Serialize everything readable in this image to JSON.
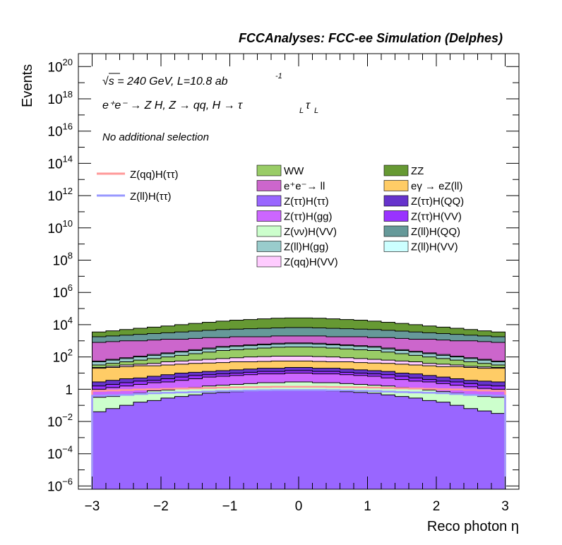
{
  "chart_data": {
    "type": "histogram-stack",
    "title": "FCCAnalyses: FCC-ee Simulation (Delphes)",
    "xlabel": "Reco photon η",
    "ylabel": "Events",
    "xlim": [
      -3.2,
      3.2
    ],
    "ylim_log10": [
      -6.2,
      20.8
    ],
    "log_y": true,
    "annotations": {
      "energy_prefix": "√s",
      "energy_rest": " = 240 GeV, L=10.8 ab",
      "lumi_exp": "-1",
      "process": "e⁺e⁻ → Z H, Z  → qq, H  → τ",
      "process_sub1": "L",
      "process_tau2": "τ",
      "process_sub2": "L",
      "selection": "No additional selection"
    },
    "x_ticks": [
      "−3",
      "−2",
      "−1",
      "0",
      "1",
      "2",
      "3"
    ],
    "x_tick_values": [
      -3,
      -2,
      -1,
      0,
      1,
      2,
      3
    ],
    "y_ticks": [
      {
        "exp": -6,
        "label": "10",
        "sup": "−6"
      },
      {
        "exp": -4,
        "label": "10",
        "sup": "−4"
      },
      {
        "exp": -2,
        "label": "10",
        "sup": "−2"
      },
      {
        "exp": 0,
        "label": "1",
        "sup": ""
      },
      {
        "exp": 2,
        "label": "10",
        "sup": "2"
      },
      {
        "exp": 4,
        "label": "10",
        "sup": "4"
      },
      {
        "exp": 6,
        "label": "10",
        "sup": "6"
      },
      {
        "exp": 8,
        "label": "10",
        "sup": "8"
      },
      {
        "exp": 10,
        "label": "10",
        "sup": "10"
      },
      {
        "exp": 12,
        "label": "10",
        "sup": "12"
      },
      {
        "exp": 14,
        "label": "10",
        "sup": "14"
      },
      {
        "exp": 16,
        "label": "10",
        "sup": "16"
      },
      {
        "exp": 18,
        "label": "10",
        "sup": "18"
      },
      {
        "exp": 20,
        "label": "10",
        "sup": "20"
      }
    ],
    "bins": {
      "start": -3,
      "end": 3,
      "count": 30
    },
    "stack_log10_tops": [
      {
        "name": "Z(ττ)H(ττ)",
        "color": "#9966ff",
        "values": [
          -1.4,
          -1.2,
          -1.0,
          -0.8,
          -0.7,
          -0.55,
          -0.45,
          -0.35,
          -0.25,
          -0.2,
          -0.15,
          -0.1,
          -0.05,
          -0.05,
          -0.05,
          -0.05,
          -0.05,
          -0.1,
          -0.15,
          -0.2,
          -0.25,
          -0.35,
          -0.45,
          -0.55,
          -0.7,
          -0.8,
          -1.0,
          -1.2,
          -1.35,
          -1.5
        ]
      },
      {
        "name": "Z(νν)H(VV)",
        "color": "#ccffcc",
        "values": [
          -0.5,
          -0.45,
          -0.35,
          -0.25,
          -0.1,
          -0.05,
          0.05,
          0.1,
          0.2,
          0.25,
          0.3,
          0.35,
          0.4,
          0.4,
          0.45,
          0.45,
          0.4,
          0.4,
          0.35,
          0.3,
          0.25,
          0.2,
          0.1,
          0.05,
          -0.05,
          -0.15,
          -0.25,
          -0.35,
          -0.45,
          -0.5
        ]
      },
      {
        "name": "Z(ττ)H(gg)",
        "color": "#cc66ff",
        "values": [
          0.0,
          0.1,
          0.2,
          0.3,
          0.4,
          0.45,
          0.55,
          0.65,
          0.75,
          0.8,
          0.85,
          0.9,
          0.95,
          0.95,
          1.0,
          1.0,
          0.95,
          0.95,
          0.9,
          0.85,
          0.8,
          0.7,
          0.6,
          0.5,
          0.45,
          0.35,
          0.25,
          0.15,
          0.05,
          0.0
        ]
      },
      {
        "name": "Z(ττ)H(VV)",
        "color": "#9933ff",
        "values": [
          0.2,
          0.3,
          0.4,
          0.5,
          0.55,
          0.65,
          0.75,
          0.85,
          0.9,
          0.95,
          1.0,
          1.05,
          1.1,
          1.1,
          1.15,
          1.15,
          1.1,
          1.1,
          1.05,
          1.0,
          0.95,
          0.9,
          0.8,
          0.7,
          0.6,
          0.5,
          0.45,
          0.35,
          0.25,
          0.2
        ]
      },
      {
        "name": "Z(ττ)H(QQ)",
        "color": "#6633cc",
        "values": [
          0.45,
          0.55,
          0.65,
          0.7,
          0.8,
          0.9,
          1.0,
          1.05,
          1.1,
          1.15,
          1.2,
          1.25,
          1.3,
          1.3,
          1.35,
          1.35,
          1.3,
          1.3,
          1.25,
          1.2,
          1.15,
          1.1,
          1.0,
          0.95,
          0.85,
          0.75,
          0.65,
          0.55,
          0.5,
          0.45
        ]
      },
      {
        "name": "eγ → eZ(ll)",
        "color": "#ffcc66",
        "values": [
          1.3,
          1.35,
          1.4,
          1.45,
          1.45,
          1.5,
          1.55,
          1.6,
          1.62,
          1.65,
          1.7,
          1.7,
          1.72,
          1.75,
          1.75,
          1.75,
          1.72,
          1.7,
          1.7,
          1.65,
          1.62,
          1.6,
          1.55,
          1.5,
          1.45,
          1.4,
          1.4,
          1.35,
          1.3,
          1.3
        ]
      },
      {
        "name": "Z(qq)H(VV)",
        "color": "#ffccff",
        "values": [
          1.35,
          1.42,
          1.5,
          1.55,
          1.6,
          1.7,
          1.75,
          1.8,
          1.85,
          1.9,
          1.95,
          2.0,
          2.02,
          2.05,
          2.05,
          2.05,
          2.02,
          2.0,
          1.95,
          1.9,
          1.85,
          1.8,
          1.75,
          1.7,
          1.6,
          1.55,
          1.5,
          1.42,
          1.38,
          1.35
        ]
      },
      {
        "name": "WW",
        "color": "#99cc66",
        "values": [
          1.5,
          1.6,
          1.7,
          1.8,
          1.9,
          2.0,
          2.1,
          2.2,
          2.3,
          2.4,
          2.45,
          2.5,
          2.55,
          2.6,
          2.62,
          2.62,
          2.6,
          2.55,
          2.5,
          2.45,
          2.4,
          2.3,
          2.2,
          2.1,
          2.0,
          1.9,
          1.8,
          1.7,
          1.6,
          1.5
        ]
      },
      {
        "name": "Z(ll)H(gg)",
        "color": "#99cccc",
        "values": [
          1.7,
          1.8,
          1.9,
          2.0,
          2.1,
          2.2,
          2.3,
          2.4,
          2.5,
          2.6,
          2.65,
          2.7,
          2.75,
          2.8,
          2.82,
          2.82,
          2.8,
          2.75,
          2.7,
          2.65,
          2.6,
          2.5,
          2.4,
          2.3,
          2.2,
          2.1,
          2.0,
          1.9,
          1.8,
          1.7
        ]
      },
      {
        "name": "Z(ll)H(VV)",
        "color": "#ccffff",
        "values": [
          1.75,
          1.85,
          1.95,
          2.05,
          2.15,
          2.25,
          2.35,
          2.45,
          2.55,
          2.65,
          2.7,
          2.75,
          2.8,
          2.85,
          2.87,
          2.87,
          2.85,
          2.8,
          2.75,
          2.7,
          2.65,
          2.55,
          2.45,
          2.35,
          2.25,
          2.15,
          2.05,
          1.95,
          1.85,
          1.75
        ]
      },
      {
        "name": "e⁺e⁻→ ll",
        "color": "#cc66cc",
        "values": [
          2.9,
          2.95,
          3.0,
          3.0,
          3.05,
          3.1,
          3.1,
          3.15,
          3.2,
          3.2,
          3.25,
          3.25,
          3.25,
          3.3,
          3.3,
          3.3,
          3.3,
          3.25,
          3.25,
          3.25,
          3.2,
          3.2,
          3.15,
          3.1,
          3.1,
          3.05,
          3.0,
          3.0,
          2.95,
          2.9
        ]
      },
      {
        "name": "Z(ll)H(QQ)",
        "color": "#669999",
        "values": [
          3.25,
          3.3,
          3.35,
          3.4,
          3.45,
          3.5,
          3.55,
          3.6,
          3.65,
          3.7,
          3.72,
          3.75,
          3.77,
          3.8,
          3.82,
          3.82,
          3.8,
          3.77,
          3.75,
          3.72,
          3.7,
          3.65,
          3.6,
          3.55,
          3.5,
          3.45,
          3.4,
          3.35,
          3.3,
          3.25
        ]
      },
      {
        "name": "ZZ",
        "color": "#669933",
        "values": [
          3.55,
          3.62,
          3.7,
          3.78,
          3.85,
          3.92,
          4.0,
          4.08,
          4.15,
          4.22,
          4.28,
          4.32,
          4.36,
          4.4,
          4.42,
          4.42,
          4.4,
          4.36,
          4.32,
          4.28,
          4.22,
          4.15,
          4.08,
          4.0,
          3.92,
          3.85,
          3.78,
          3.7,
          3.62,
          3.55
        ]
      }
    ],
    "signal_lines": [
      {
        "name": "Z(qq)H(ττ)",
        "color": "#ff9999",
        "values": [
          -0.1,
          -0.08,
          -0.05,
          -0.02,
          0.0,
          0.02,
          0.04,
          0.06,
          0.08,
          0.1,
          0.12,
          0.13,
          0.14,
          0.15,
          0.15,
          0.15,
          0.15,
          0.14,
          0.13,
          0.12,
          0.1,
          0.08,
          0.06,
          0.04,
          0.02,
          0.0,
          -0.02,
          -0.05,
          -0.08,
          -0.1
        ]
      },
      {
        "name": "Z(ll)H(ττ)",
        "color": "#9999ff",
        "values": [
          -0.4,
          -0.38,
          -0.35,
          -0.3,
          -0.25,
          -0.22,
          -0.2,
          -0.18,
          -0.15,
          -0.12,
          -0.1,
          -0.08,
          -0.06,
          -0.05,
          -0.05,
          -0.05,
          -0.05,
          -0.06,
          -0.08,
          -0.1,
          -0.12,
          -0.15,
          -0.18,
          -0.2,
          -0.22,
          -0.25,
          -0.3,
          -0.35,
          -0.38,
          -0.4
        ]
      }
    ],
    "legend_lines": [
      {
        "label": "Z(qq)H(ττ)",
        "color": "#ff9999"
      },
      {
        "label": "Z(ll)H(ττ)",
        "color": "#9999ff"
      }
    ],
    "legend_boxes": [
      {
        "label": "WW",
        "color": "#99cc66"
      },
      {
        "label": "ZZ",
        "color": "#669933"
      },
      {
        "label": "e⁺e⁻→ ll",
        "color": "#cc66cc"
      },
      {
        "label": "eγ → eZ(ll)",
        "color": "#ffcc66"
      },
      {
        "label": "Z(ττ)H(ττ)",
        "color": "#9966ff"
      },
      {
        "label": "Z(ττ)H(QQ)",
        "color": "#6633cc"
      },
      {
        "label": "Z(ττ)H(gg)",
        "color": "#cc66ff"
      },
      {
        "label": "Z(ττ)H(VV)",
        "color": "#9933ff"
      },
      {
        "label": "Z(νν)H(VV)",
        "color": "#ccffcc"
      },
      {
        "label": "Z(ll)H(QQ)",
        "color": "#669999"
      },
      {
        "label": "Z(ll)H(gg)",
        "color": "#99cccc"
      },
      {
        "label": "Z(ll)H(VV)",
        "color": "#ccffff"
      },
      {
        "label": "Z(qq)H(VV)",
        "color": "#ffccff"
      }
    ]
  }
}
